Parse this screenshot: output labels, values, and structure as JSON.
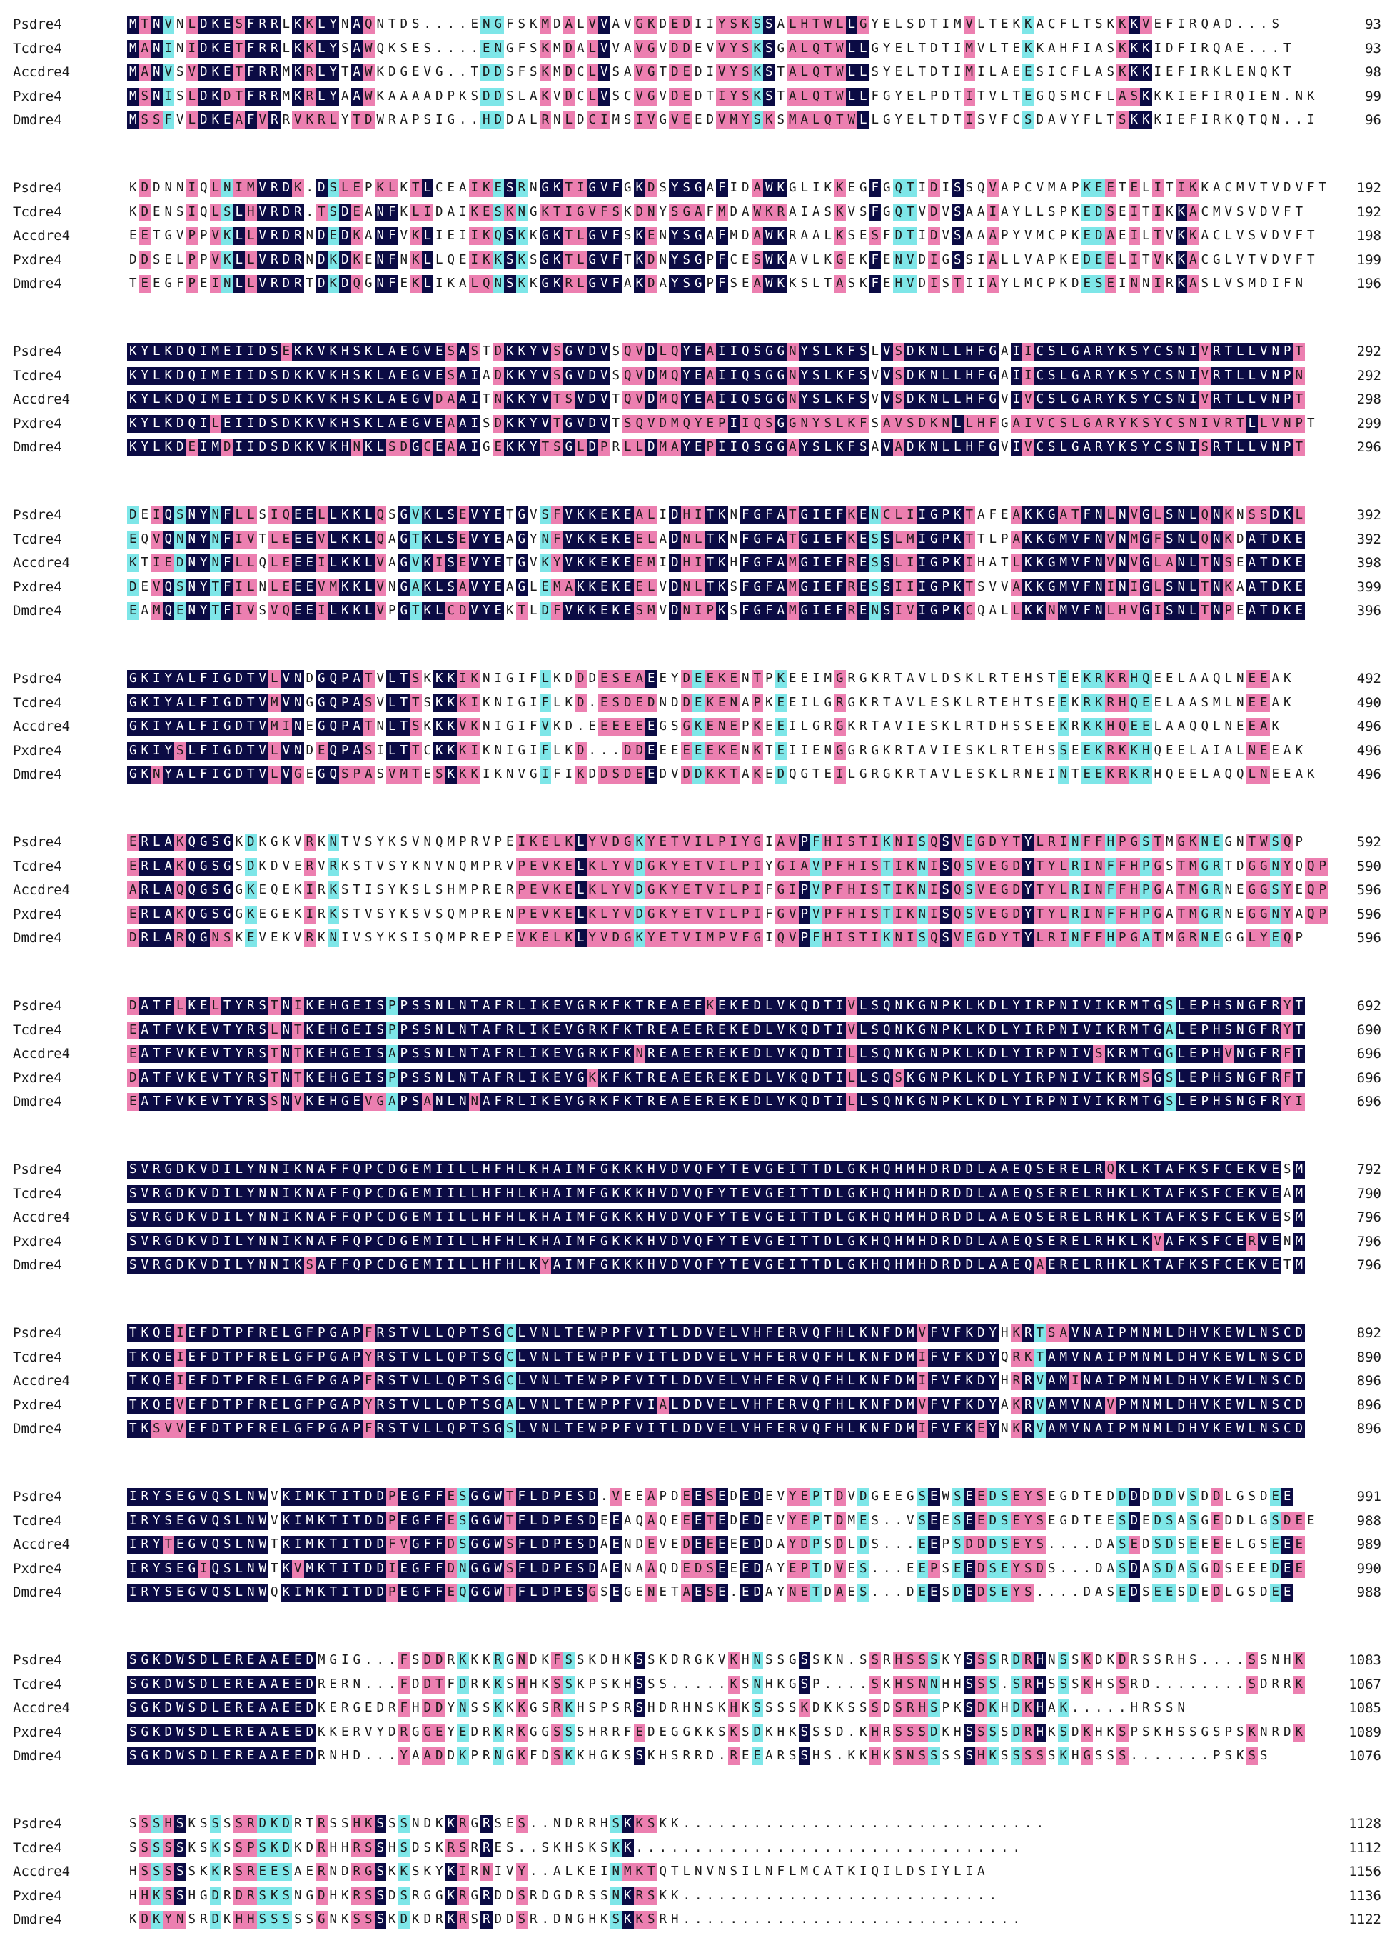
{
  "colors": {
    "identical": "#0b0b44",
    "strong": "#ec7fb0",
    "weak": "#7ee6e8",
    "none": "#ffffff",
    "text_on_dark": "#ffffff",
    "text_on_light": "#1a1a1a"
  },
  "blocks": [
    {
      "rows": [
        {
          "name": "Psdre4",
          "seq": "MTNVNLDKESFRRLKKLYNAQNTDS....ENGFSKMDALVVAVGKDEDIIYSKSSALHTWLLGYELSDTIMVLTEKKACFLTSKKKVEFIRQAD...S",
          "end": "93"
        },
        {
          "name": "Tcdre4",
          "seq": "MANINIDKETFRRLKKLYSAWQKSES....ENGFSKMDALVVAVGVDDEVVYSKSGALQTWLLGYELTDTIMVLTEKKAHFIASKKKIDFIRQAE...T",
          "end": "93"
        },
        {
          "name": "Accdre4",
          "seq": "MANVSVDKETFRRMKRLYTAWKDGEVG..TDDSFSKMDCLVSAVGTDEDIVYSKSTALQTWLLSYELTDTIMILAEESICFLASKKKIEFIRKLENQKT",
          "end": "98"
        },
        {
          "name": "Pxdre4",
          "seq": "MSNISLDKDTFRRMKRLYAAWKAAAADPKSDDSLAKVDCLVSCVGVDEDTIYSKSTALQTWLLFGYELPDTITVLTEGQSMCFLASKKKIEFIRQIEN.NK",
          "end": "99"
        },
        {
          "name": "Dmdre4",
          "seq": "MSSFVLDKEAFVRRVKRLYTDWRAPSIG..HDDALRNLDCIMSIVGVEEDVMYSKSMALQTWLLGYELTDTISVFCSDAVYFLTSKKKIEFIRKQTQN..I",
          "end": "96"
        }
      ]
    },
    {
      "rows": [
        {
          "name": "Psdre4",
          "seq": "KDDNNIQLNIMVRDK.DSLEPKLKTLCEAIKESRNGKTIGVFGKDSYSGAFIDAWKGLIKKEGFGQTIDISSQVAPCVMAPKEETELITIKKACMVTVDVFT",
          "end": "192"
        },
        {
          "name": "Tcdre4",
          "seq": "KDENSIQLSLHVRDR.TSDEANFKLIDAIKESKNGKTIGVFSKDNYSGAFMDAWKRAIASKVSFGQTVDVSAAIAYLLSPKEDSEITIKKACMVSVDVFT",
          "end": "192"
        },
        {
          "name": "Accdre4",
          "seq": "EETGVPPVKLLVRDRNDEDKANFVKLIEIIKQSKKGKTLGVFSKENYSGAFMDAWKRAALKSESFDTIDVSAAAPYVMCPKEDAEILTVKKACLVSVDVFT",
          "end": "198"
        },
        {
          "name": "Pxdre4",
          "seq": "DDSELPPVKLLVRDRNDKDKENFNKLLQEIKKSKSGKTLGVFTKDNYSGPFCESWKAVLKGEKFENVDIGSSIALLVAPKEDEELITVKKACGLVTVDVFT",
          "end": "199"
        },
        {
          "name": "Dmdre4",
          "seq": "TEEGFPEINLLVRDRTDKDQGNFEKLIKALQNSKKGKRLGVFAKDAYSGPFSEAWKKSLTASKFEHVDISTIIAYLMCPKDESEINNIRKASLVSMDIFN",
          "end": "196"
        }
      ]
    },
    {
      "rows": [
        {
          "name": "Psdre4",
          "seq": "KYLKDQIMEIIDSEKKVKHSKLAEGVESASTDKKYVSGVDVSQVDLQYEAIIQSGGNYSLKFSLVSDKNLLHFGAIICSLGARYKSYCSNIVRTLLVNPT",
          "end": "292"
        },
        {
          "name": "Tcdre4",
          "seq": "KYLKDQIMEIIDSDKKVKHSKLAEGVESAIADKKYVSGVDVSQVDMQYEAIIQSGGNYSLKFSVVSDKNLLHFGAIICSLGARYKSYCSNIVRTLLVNPN",
          "end": "292"
        },
        {
          "name": "Accdre4",
          "seq": "KYLKDQIMEIIDSDKKVKHSKLAEGVDAAITNKKYVTSVDVTQVDMQYEAIIQSGGNYSLKFSVVSDKNLLHFGVIVCSLGARYKSYCSNIVRTLLVNPT",
          "end": "298"
        },
        {
          "name": "Pxdre4",
          "seq": "KYLKDQILEIIDSDKKVKHSKLAEGVEAAISDKKYVTGVDVTSQVDMQYEPIIQSGGNYSLKFSAVSDKNLLHFGAIVCSLGARYKSYCSNIVRTLLVNPT",
          "end": "299"
        },
        {
          "name": "Dmdre4",
          "seq": "KYLKDEIMDIIDSDKKVKHNKLSDGCEAAIGEKKYTSGLDPRLLDMAYEPIIQSGGAYSLKFSAVADKNLLHFGVIVCSLGARYKSYCSNISRTLLVNPT",
          "end": "296"
        }
      ]
    },
    {
      "rows": [
        {
          "name": "Psdre4",
          "seq": "DEIQSNYNFLLSIQEELLKKLQSGVKLSEVYETGVSFVKKEKEALIDHITKNFGFATGIEFKENCLIIGPKTAFEAKKGATFNLNVGLSNLQNKNSSDKL",
          "end": "392"
        },
        {
          "name": "Tcdre4",
          "seq": "EQVQNNYNFIVTLEEEVLKKLQAGTKLSEVYEAGYNFVKKEKEELADNLTKNFGFATGIEFKESSLMIGPKTTLPAKKGMVFNVNMGFSNLQNKDATDKE",
          "end": "392"
        },
        {
          "name": "Accdre4",
          "seq": "KTIEDNYNFLLQLEEEILKKLVAGVKISEVYETGVKYVKKEKEEMIDHITKHFGFAMGIEFRESSLIIGPKIHATLKKGMVFNVNVGLANLTNSEATDKE",
          "end": "398"
        },
        {
          "name": "Pxdre4",
          "seq": "DEVQSNYTFILNLEEEVMKKLVNGAKLSAVYEAGLEMAKKEKEELVDNLTKSFGFAMGIEFRESSIIIGPKTSVVAKKGMVFNINIGLSNLTNKAATDKE",
          "end": "399"
        },
        {
          "name": "Dmdre4",
          "seq": "EAMQENYTFIVSVQEEILKKLVPGTKLCDVYEKTLDFVKKEKESMVDNIPKSFGFAMGIEFRENSIVIGPKCQALLKKNMVFNLHVGISNLTNPEATDKE",
          "end": "396"
        }
      ]
    },
    {
      "rows": [
        {
          "name": "Psdre4",
          "seq": "GKIYALFIGDTVLVNDGQPATVLTSKKKIKNIGIFLKDDDESEAEEYDEEKENTPKEEIMGRGKRTAVLDSKLRTEHSTEEKRKRHQEELAAQLNEEAK",
          "end": "492"
        },
        {
          "name": "Tcdre4",
          "seq": "GKIYALFIGDTVMVNGGQPASVLTTSKKKIKNIGIFLKD.ESDEDNDDEKENAPKEEILGRGKRTAVLESKLRTEHTSEEKRKRHQEELAASMLNEEAK",
          "end": "490"
        },
        {
          "name": "Accdre4",
          "seq": "GKIYALFIGDTVMINEGQPATNLTSKKKVKNIGIFVKD.EEEEEEGSGKENEPKEEILGRGKRTAVIESKLRTDHSSEEKRKKHQEELAAQQLNEEAK",
          "end": "496"
        },
        {
          "name": "Pxdre4",
          "seq": "GKIYSLFIGDTVLVNDEQPASILTTCKKKIKNIGIFLKD...DDEEEEEEKENKTEIIENGGRGKRTAVIESKLRTEHSSEEKRKKHQEELAIALNEEAK",
          "end": "496"
        },
        {
          "name": "Dmdre4",
          "seq": "GKNYALFIGDTVLVGEGQSPASVMTESKKKIKNVGIFIKDDSDEEDVDDKKTAKEDQGTEILGRGKRTAVLESKLRNEINTEEKRKRHQEELAQQLNEEAK",
          "end": "496"
        }
      ]
    },
    {
      "rows": [
        {
          "name": "Psdre4",
          "seq": "ERLAKQGSGKDKGKVRKNTVSYKSVNQMPRVPEIKELKLYVDGKYETVILPIYGIAVPFHISTIKNISQSVEGDYTYLRINFFHPGSTMGKNEGNTWSQP",
          "end": "592"
        },
        {
          "name": "Tcdre4",
          "seq": "ERLAKQGSGSDKDVERVRKSTVSYKNVNQMPRVPEVKELKLYVDGKYETVILPIYGIAVPFHISTIKNISQSVEGDYTYLRINFFHPGSTMGRTDGGNYQQP",
          "end": "590"
        },
        {
          "name": "Accdre4",
          "seq": "ARLAQQGSGGKEQEKIRKSTISYKSLSHMPRERPEVKELKLYVDGKYETVILPIFGIPVPFHISTIKNISQSVEGDYTYLRINFFHPGATMGRNEGGSYEQP",
          "end": "596"
        },
        {
          "name": "Pxdre4",
          "seq": "ERLAKQGSGGKEGEKIRKSTVSYKSVSQMPRENPEVKELKLYVDGKYETVILPIFGVPVPFHISTIKNISQSVEGDYTYLRINFFHPGATMGRNEGGNYAQP",
          "end": "596"
        },
        {
          "name": "Dmdre4",
          "seq": "DRLARQGNSKEVEKVRKNIVSYKSISQMPREPEVKELKLYVDGKYETVIMPVFGIQVPFHISTIKNISQSVEGDYTYLRINFFHPGATMGRNEGGLYEQP",
          "end": "596"
        }
      ]
    },
    {
      "rows": [
        {
          "name": "Psdre4",
          "seq": "DATFLKELTYRSTNIKEHGEISPPSSNLNTAFRLIKEVGRKFKTREAEEKEKEDLVKQDTIVLSQNKGNPKLKDLYIRPNIVIKRMTGSLEPHSNGFRYT",
          "end": "692"
        },
        {
          "name": "Tcdre4",
          "seq": "EATFVKEVTYRSLNTKEHGEISPPSSNLNTAFRLIKEVGRKFKTREAEEREKEDLVKQDTIVLSQNKGNPKLKDLYIRPNIVIKRMTGALEPHSNGFRYT",
          "end": "690"
        },
        {
          "name": "Accdre4",
          "seq": "EATFVKEVTYRSTNTKEHGEISAPSSNLNTAFRLIKEVGRKFKNREAEEREKEDLVKQDTILLSQNKGNPKLKDLYIRPNIVSKRMTGGLEPHVNGFRFT",
          "end": "696"
        },
        {
          "name": "Pxdre4",
          "seq": "DATFVKEVTYRSTNTKEHGEISPPSSNLNTAFRLIKEVGKKFKTREAEEREKEDLVKQDTILLSQSKGNPKLKDLYIRPNIVIKRMSGSLEPHSNGFRFT",
          "end": "696"
        },
        {
          "name": "Dmdre4",
          "seq": "EATFVKEVTYRSSNVKEHGEVGAPSANLNNAFRLIKEVGRKFKTREAEEREKEDLVKQDTILLSQNKGNPKLKDLYIRPNIVIKRMTGSLEPHSNGFRYI",
          "end": "696"
        }
      ]
    },
    {
      "rows": [
        {
          "name": "Psdre4",
          "seq": "SVRGDKVDILYNNIKNAFFQPCDGEMIILLHFHLKHAIMFGKKKHVDVQFYTEVGEITTDLGKHQHMHDRDDLAAEQSERELRQKLKTAFKSFCEKVESM",
          "end": "792"
        },
        {
          "name": "Tcdre4",
          "seq": "SVRGDKVDILYNNIKNAFFQPCDGEMIILLHFHLKHAIMFGKKKHVDVQFYTEVGEITTDLGKHQHMHDRDDLAAEQSERELRHKLKTAFKSFCEKVEAM",
          "end": "790"
        },
        {
          "name": "Accdre4",
          "seq": "SVRGDKVDILYNNIKNAFFQPCDGEMIILLHFHLKHAIMFGKKKHVDVQFYTEVGEITTDLGKHQHMHDRDDLAAEQSERELRHKLKTAFKSFCEKVESM",
          "end": "796"
        },
        {
          "name": "Pxdre4",
          "seq": "SVRGDKVDILYNNIKNAFFQPCDGEMIILLHFHLKHAIMFGKKKHVDVQFYTEVGEITTDLGKHQHMHDRDDLAAEQSERELRHKLKVAFKSFCERVENM",
          "end": "796"
        },
        {
          "name": "Dmdre4",
          "seq": "SVRGDKVDILYNNIKSAFFQPCDGEMIILLHFHLKYAIMFGKKKHVDVQFYTEVGEITTDLGKHQHMHDRDDLAAEQAERELRHKLKTAFKSFCEKVETM",
          "end": "796"
        }
      ]
    },
    {
      "rows": [
        {
          "name": "Psdre4",
          "seq": "TKQEIEFDTPFRELGFPGAPFRSTVLLQPTSGCLVNLTEWPPFVITLDDVELVHFERVQFHLKNFDMVFVFKDYHKRTSAVNAIPMNMLDHVKEWLNSCD",
          "end": "892"
        },
        {
          "name": "Tcdre4",
          "seq": "TKQEIEFDTPFRELGFPGAPYRSTVLLQPTSGCLVNLTEWPPFVITLDDVELVHFERVQFHLKNFDMIFVFKDYQRKTAMVNAIPMNMLDHVKEWLNSCD",
          "end": "890"
        },
        {
          "name": "Accdre4",
          "seq": "TKQEIEFDTPFRELGFPGAPFRSTVLLQPTSGCLVNLTEWPPFVITLDDVELVHFERVQFHLKNFDMIFVFKDYHRRVAMINAIPMNMLDHVKEWLNSCD",
          "end": "896"
        },
        {
          "name": "Pxdre4",
          "seq": "TKQEVEFDTPFRELGFPGAPYRSTVLLQPTSGALVNLTEWPPFVIALDDVELVHFERVQFHLKNFDMVFVFKDYAKRVAMVNAVPMNMLDHVKEWLNSCD",
          "end": "896"
        },
        {
          "name": "Dmdre4",
          "seq": "TKSVVEFDTPFRELGFPGAPFRSTVLLQPTSGSLVNLTEWPPFVITLDDVELVHFERVQFHLKNFDMIFVFKEYNKRVAMVNAIPMNMLDHVKEWLNSCD",
          "end": "896"
        }
      ]
    },
    {
      "rows": [
        {
          "name": "Psdre4",
          "seq": "IRYSEGVQSLNWVKIMKTITDDPEGFFESGGWTFLDPESD.VEEAPDEESEDEDEVYEPTDVDGEEGSEWSEEDSEYSEGDTEDDDDDDVSDDLGSDEE",
          "end": "991"
        },
        {
          "name": "Tcdre4",
          "seq": "IRYSEGVQSLNWVKIMKTITDDPEGFFESGGWTFLDPESDEEAQAQEEETEDEDEVYEPTDMES..VSEESEEDSEYSEGDTEESDEDSASGEDDLGSDEE",
          "end": "988"
        },
        {
          "name": "Accdre4",
          "seq": "IRYTEGVQSLNWTKIMKTITDDFVGFFDSGGWSFLDPESDAENDEVEDEEEEEDDAYDPSDLDS...EEPSDDDSEYS....DASEDSDSEEEELGSEEE",
          "end": "989"
        },
        {
          "name": "Pxdre4",
          "seq": "IRYSEGIQSLNWTKVMKTITDDIEGFFDNGGWSFLDPESDAENAAQDEDSEEEDAYEPTDVES...EEPSEEDSEYSDS...DASDASDASGDSEEEDEE",
          "end": "990"
        },
        {
          "name": "Dmdre4",
          "seq": "IRYSEGVQSLNWQKIMKTITDDPEGFFEQGGWTFLDPESGSEGENETAESE.EDAYNETDAES...DEESDEDSEYS....DASEDSEESDEDLGSDEE",
          "end": "988"
        }
      ]
    },
    {
      "rows": [
        {
          "name": "Psdre4",
          "seq": "SGKDWSDLEREAAEEDMGIG...FSDDRKKKRGNDKFSSKDHKSSKDRGKVKHNSSGSSKN.SSRHSSSKYSSSRDRHNSSKDKDRSSRHS....SSNHK",
          "end": "1083"
        },
        {
          "name": "Tcdre4",
          "seq": "SGKDWSDLEREAAEEDRERN...FDDTFDRKKSHHKSSKPSKHSSS.....KSNHKGSP....SKHSNNHHSSS.SRHSSSKHSSRD........SDRRK",
          "end": "1067"
        },
        {
          "name": "Accdre4",
          "seq": "SGKDWSDLEREAAEEDKERGEDRFHDDYNSSKKKGSRKHSPSRSHDRHNSKHKSSSSKDKKSSSDSRHSPKSDKHDKHAK.....HRSSN",
          "end": "1085"
        },
        {
          "name": "Pxdre4",
          "seq": "SGKDWSDLEREAAEEDKKERVYDRGGEYEDRKRKGGSSSHRRFEDEGGKKSKSDKHKSSSD.KHRSSSDKHSSSSDRHKSDKHKSPSKHSSGSPSKNRDK",
          "end": "1089"
        },
        {
          "name": "Dmdre4",
          "seq": "SGKDWSDLEREAAEEDRNHD...YAADDKPRNGKFDSKKHGKSSKHSRRD.REEARSSHS.KKHKSNSSSSSHKSSSSSKHGSSS.......PSKSS",
          "end": "1076"
        }
      ]
    },
    {
      "rows": [
        {
          "name": "Psdre4",
          "seq": "SSSHSKSSSSRDKDRTRSSHKSSSNDKKRGRSES..NDRRHSKKSKK...............................",
          "end": "1128"
        },
        {
          "name": "Tcdre4",
          "seq": "SSSSSKSKSSPSKDKDRHHRSSHSDSKRSRRES..SKHSKSKK.................................",
          "end": "1112"
        },
        {
          "name": "Accdre4",
          "seq": "HSSSSSKKRSREESAERNDRGSKKSKYKIRNIVY..ALKEINMKTQTLNVNSILNFLMCATKIQILDSIYLIA",
          "end": "1156"
        },
        {
          "name": "Pxdre4",
          "seq": "HHKSSHGDRDRSKSNGDHKRSSDSRGGKRGRDDSRDGDRSSNKRSKK...........................",
          "end": "1136"
        },
        {
          "name": "Dmdre4",
          "seq": "KDKYNSRDKHHSSSSSGNKSSSKDKDRKRSRDDSR.DNGHKSKKSRH.............................",
          "end": "1122"
        }
      ]
    }
  ]
}
